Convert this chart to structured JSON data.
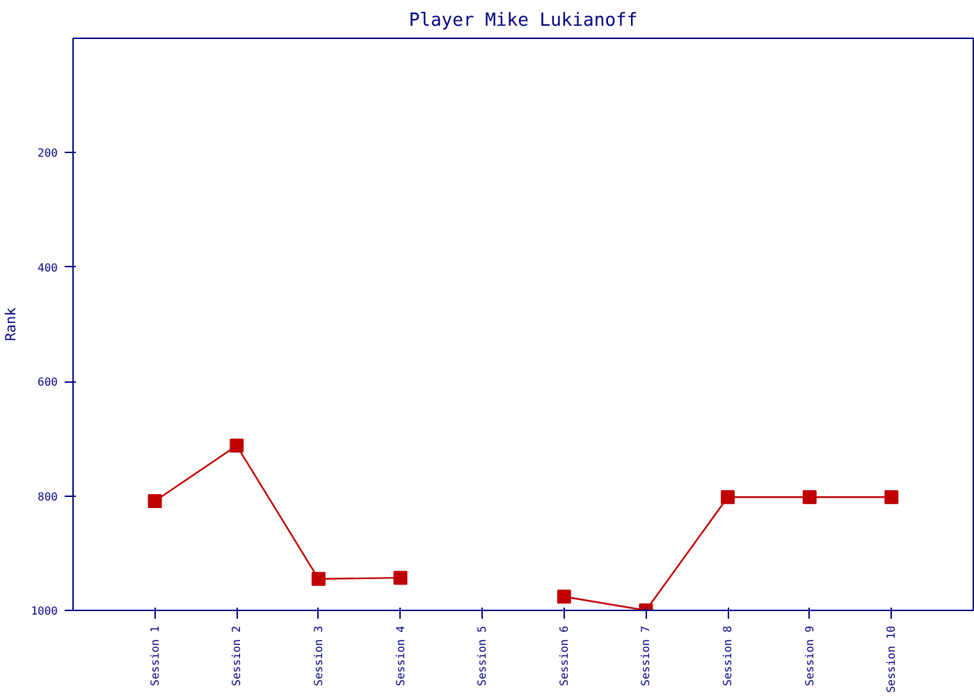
{
  "chart_data": {
    "type": "line",
    "title": "Player Mike Lukianoff",
    "ylabel": "Rank",
    "categories": [
      "Session 1",
      "Session 2",
      "Session 3",
      "Session 4",
      "Session 5",
      "Session 6",
      "Session 7",
      "Session 8",
      "Session 9",
      "Session 10"
    ],
    "series": [
      {
        "color": "#c00000",
        "values": [
          809,
          712,
          945,
          943,
          null,
          976,
          1000,
          802,
          802,
          802
        ]
      }
    ],
    "ylim": [
      1000,
      0
    ],
    "yticks": [
      200,
      400,
      600,
      800,
      1000
    ],
    "marker": "square",
    "line_style": "solid"
  }
}
